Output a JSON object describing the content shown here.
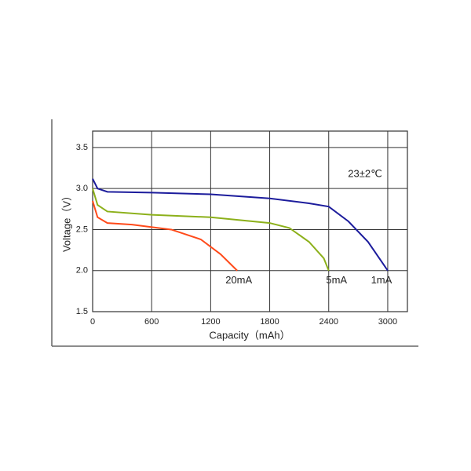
{
  "chart_data": {
    "type": "line",
    "xlabel": "Capacity（mAh）",
    "ylabel": "Voltage（V）",
    "annotations": [
      "23±2℃"
    ],
    "xlim": [
      0,
      3200
    ],
    "ylim": [
      1.5,
      3.7
    ],
    "xticks": [
      0,
      600,
      1200,
      1800,
      2400,
      3000
    ],
    "yticks": [
      1.5,
      {
        "value": 2,
        "label": "2.0"
      },
      2.5,
      {
        "value": 3,
        "label": "3.0"
      },
      3.5
    ],
    "grid": true,
    "series": [
      {
        "name": "1mA",
        "color": "#1c1c9c",
        "x": [
          0,
          50,
          150,
          600,
          1200,
          1800,
          2200,
          2400,
          2600,
          2800,
          3000
        ],
        "values": [
          3.12,
          3.0,
          2.96,
          2.95,
          2.93,
          2.88,
          2.82,
          2.78,
          2.6,
          2.35,
          2.0
        ]
      },
      {
        "name": "5mA",
        "color": "#8cb01a",
        "x": [
          0,
          50,
          150,
          600,
          1200,
          1800,
          2000,
          2200,
          2350,
          2400
        ],
        "values": [
          3.0,
          2.8,
          2.72,
          2.68,
          2.65,
          2.58,
          2.52,
          2.35,
          2.15,
          2.0
        ]
      },
      {
        "name": "20mA",
        "color": "#ff4a1a",
        "x": [
          0,
          50,
          150,
          400,
          800,
          1100,
          1300,
          1470
        ],
        "values": [
          2.85,
          2.65,
          2.58,
          2.56,
          2.5,
          2.38,
          2.2,
          2.0
        ]
      }
    ]
  }
}
